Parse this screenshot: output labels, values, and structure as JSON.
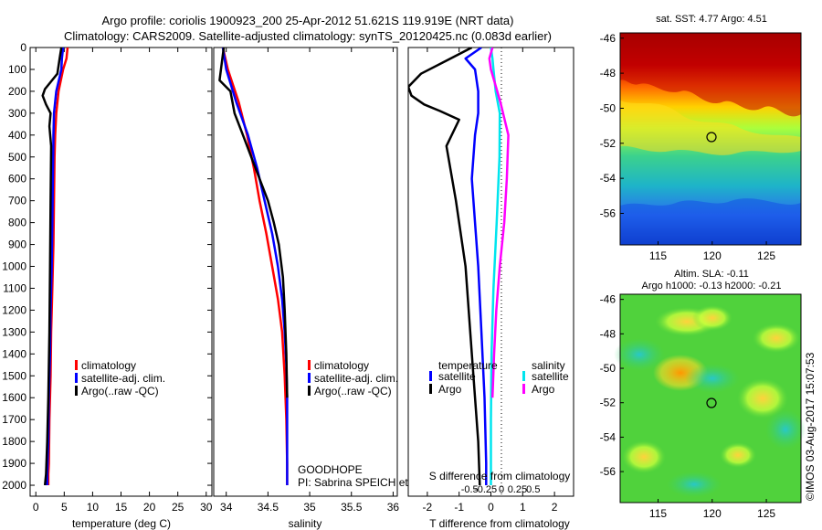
{
  "header": {
    "line1": "Argo profile: coriolis 1900923_200 25-Apr-2012 51.621S 119.919E (NRT data)",
    "line2": "Climatology: CARS2009. Satellite-adjusted climatology: synTS_20120425.nc (0.083d earlier)"
  },
  "colors": {
    "clim": "#ff0000",
    "sat": "#0000ff",
    "argo": "#000000",
    "sat_s": "#00e5ee",
    "argo_s": "#ff00ff"
  },
  "chart_data": [
    {
      "type": "line",
      "id": "temperature",
      "xlabel": "temperature (deg C)",
      "ylabel": "",
      "xlim": [
        -1,
        31
      ],
      "ylim": [
        2050,
        0
      ],
      "xticks": [
        0,
        5,
        10,
        15,
        20,
        25,
        30
      ],
      "yticks": [
        0,
        100,
        200,
        300,
        400,
        500,
        600,
        700,
        800,
        900,
        1000,
        1100,
        1200,
        1300,
        1400,
        1500,
        1600,
        1700,
        1800,
        1900,
        2000
      ],
      "legend": [
        "climatology",
        "satellite-adj. clim.",
        "Argo(..raw -QC)"
      ],
      "series": [
        {
          "name": "climatology",
          "color": "#ff0000",
          "x": [
            5.6,
            5.4,
            4.8,
            4.0,
            3.6,
            3.4,
            3.3,
            3.2,
            3.1,
            2.9,
            2.7,
            2.6,
            2.4,
            2.3,
            2.2,
            2.2
          ],
          "y": [
            0,
            50,
            100,
            200,
            300,
            400,
            500,
            700,
            900,
            1100,
            1300,
            1500,
            1700,
            1900,
            1950,
            2000
          ]
        },
        {
          "name": "satellite-adj. clim.",
          "color": "#0000ff",
          "x": [
            4.8,
            4.6,
            4.5,
            3.6,
            3.2,
            3.1,
            3.0,
            2.9,
            2.8,
            2.6,
            2.5,
            2.3,
            2.2,
            2.0,
            2.0
          ],
          "y": [
            0,
            50,
            100,
            200,
            300,
            400,
            600,
            800,
            1000,
            1200,
            1400,
            1600,
            1800,
            1950,
            2000
          ]
        },
        {
          "name": "Argo(..raw -QC)",
          "color": "#000000",
          "x": [
            4.5,
            4.2,
            3.8,
            1.6,
            1.2,
            1.8,
            2.6,
            2.4,
            2.7,
            2.6,
            2.5,
            2.4,
            2.2,
            2.0,
            1.8,
            1.6
          ],
          "y": [
            0,
            50,
            120,
            190,
            220,
            260,
            300,
            360,
            450,
            700,
            1000,
            1300,
            1600,
            1800,
            1950,
            2000
          ]
        }
      ]
    },
    {
      "type": "line",
      "id": "salinity",
      "xlabel": "salinity",
      "ylabel": "",
      "xlim": [
        33.85,
        36.05
      ],
      "ylim": [
        2050,
        0
      ],
      "xticks": [
        34,
        34.5,
        35,
        35.5,
        36
      ],
      "xticklabels": [
        "34",
        "34.5",
        "35",
        "35.5",
        "36"
      ],
      "legend": [
        "climatology",
        "satellite-adj. clim.",
        "Argo(..raw -QC)"
      ],
      "series": [
        {
          "name": "climatology",
          "color": "#ff0000",
          "x": [
            33.96,
            34.02,
            34.15,
            34.25,
            34.33,
            34.4,
            34.48,
            34.55,
            34.62,
            34.67,
            34.7,
            34.72,
            34.73,
            34.73
          ],
          "y": [
            0,
            100,
            250,
            400,
            550,
            700,
            850,
            1000,
            1150,
            1300,
            1500,
            1700,
            1900,
            2000
          ]
        },
        {
          "name": "satellite-adj. clim.",
          "color": "#0000ff",
          "x": [
            33.96,
            34.0,
            34.12,
            34.26,
            34.37,
            34.46,
            34.55,
            34.62,
            34.67,
            34.7,
            34.72,
            34.73,
            34.73,
            34.73
          ],
          "y": [
            0,
            100,
            250,
            400,
            550,
            700,
            850,
            1000,
            1150,
            1300,
            1450,
            1600,
            1800,
            2000
          ]
        },
        {
          "name": "Argo(..raw -QC)",
          "color": "#000000",
          "x": [
            33.97,
            33.92,
            34.05,
            34.1,
            34.2,
            34.3,
            34.4,
            34.5,
            34.57,
            34.63,
            34.68,
            34.7,
            34.72,
            34.73
          ],
          "y": [
            0,
            150,
            200,
            300,
            400,
            500,
            600,
            700,
            800,
            900,
            1050,
            1200,
            1400,
            1600
          ]
        }
      ],
      "annotation": [
        "GOODHOPE",
        "PI: Sabrina SPEICH et Michel ARHAN"
      ]
    },
    {
      "type": "line",
      "id": "difference",
      "xlabel": "T difference from climatology",
      "xlabel_top": "S difference from climatology",
      "xlim": [
        -2.6,
        2.6
      ],
      "ylim": [
        2050,
        0
      ],
      "xticks": [
        -2,
        -1,
        0,
        1,
        2
      ],
      "xticks_top": [
        -0.5,
        -0.25,
        0,
        0.25,
        0.5
      ],
      "xticklabels_top": [
        "-0.5",
        "-0.25",
        "0",
        "0.25",
        "0.5"
      ],
      "legend_groups": [
        {
          "title": "temperature",
          "items": [
            "satellite",
            "Argo"
          ]
        },
        {
          "title": "salinity",
          "items": [
            "satellite",
            "Argo"
          ]
        }
      ],
      "series": [
        {
          "name": "temperature satellite",
          "color": "#0000ff",
          "x": [
            -0.3,
            -0.8,
            -0.5,
            -0.4,
            -0.4,
            -0.5,
            -0.6,
            -0.5,
            -0.4,
            -0.3,
            -0.2,
            -0.15,
            -0.15
          ],
          "y": [
            0,
            50,
            100,
            200,
            300,
            400,
            600,
            800,
            1000,
            1300,
            1600,
            1900,
            2000
          ]
        },
        {
          "name": "temperature Argo",
          "color": "#000000",
          "x": [
            -0.6,
            -1.4,
            -2.2,
            -2.6,
            -2.5,
            -2.1,
            -1.6,
            -1.0,
            -1.4,
            -1.1,
            -0.8,
            -0.6,
            -0.4,
            -0.35
          ],
          "y": [
            0,
            60,
            120,
            180,
            220,
            260,
            290,
            330,
            450,
            700,
            1000,
            1400,
            1800,
            2000
          ]
        },
        {
          "name": "salinity satellite",
          "color": "#00e5ee",
          "x": [
            0.0,
            0.05,
            0.08,
            0.15,
            0.28,
            0.27,
            0.18,
            0.08,
            0.02,
            0.0,
            0.0
          ],
          "y": [
            0,
            50,
            100,
            200,
            300,
            500,
            800,
            1100,
            1400,
            1700,
            2000
          ]
        },
        {
          "name": "salinity Argo",
          "color": "#ff00ff",
          "x": [
            0.05,
            -0.05,
            0.0,
            0.3,
            0.55,
            0.5,
            0.42,
            0.28,
            0.17,
            0.1,
            0.05
          ],
          "y": [
            0,
            50,
            100,
            250,
            400,
            600,
            800,
            1000,
            1200,
            1400,
            1600
          ]
        }
      ]
    },
    {
      "type": "heatmap",
      "id": "sst_map",
      "title": "sat. SST: 4.77 Argo: 4.51",
      "xlim": [
        111.5,
        128.2
      ],
      "ylim": [
        -57.8,
        -45.7
      ],
      "xticks": [
        115,
        120,
        125
      ],
      "yticks": [
        -46,
        -48,
        -50,
        -52,
        -54,
        -56
      ],
      "profile_location": [
        119.919,
        -51.621
      ]
    },
    {
      "type": "heatmap",
      "id": "sla_map",
      "title_line1": "Altim. SLA: -0.11",
      "title_line2": "Argo h1000: -0.13 h2000: -0.21",
      "xlim": [
        111.5,
        128.2
      ],
      "ylim": [
        -57.8,
        -45.7
      ],
      "xticks": [
        115,
        120,
        125
      ],
      "yticks": [
        -46,
        -48,
        -50,
        -52,
        -54,
        -56
      ],
      "profile_location": [
        119.919,
        -51.621
      ]
    }
  ],
  "credit": "©IMOS 03-Aug-2017 15:07:53"
}
